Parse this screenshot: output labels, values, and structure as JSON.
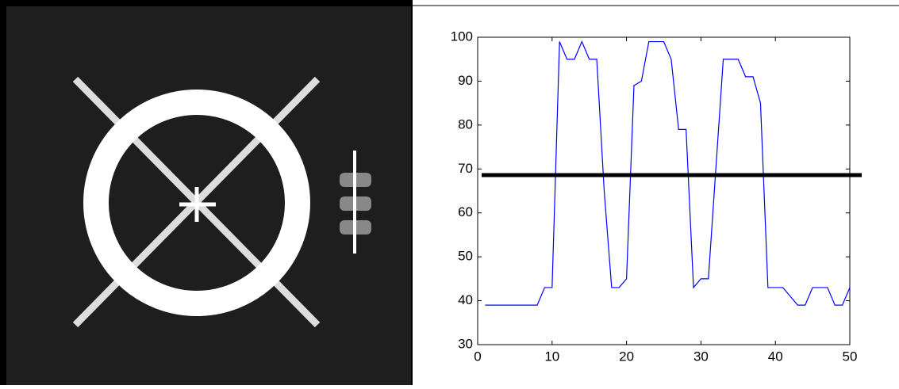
{
  "chart_data": {
    "type": "line",
    "x": [
      1,
      2,
      3,
      4,
      5,
      6,
      7,
      8,
      9,
      10,
      11,
      12,
      13,
      14,
      15,
      16,
      17,
      18,
      19,
      20,
      21,
      22,
      23,
      24,
      25,
      26,
      27,
      28,
      29,
      30,
      31,
      32,
      33,
      34,
      35,
      36,
      37,
      38,
      39,
      40,
      41,
      42,
      43,
      44,
      45,
      46,
      47,
      48,
      49,
      50
    ],
    "series": [
      {
        "color": "#0000ff",
        "values": [
          39,
          39,
          39,
          39,
          39,
          39,
          39,
          39,
          43,
          43,
          99,
          95,
          95,
          99,
          95,
          95,
          65,
          43,
          43,
          45,
          89,
          90,
          99,
          99,
          99,
          95,
          79,
          79,
          43,
          45,
          45,
          70,
          95,
          95,
          95,
          91,
          91,
          85,
          43,
          43,
          43,
          41,
          39,
          39,
          43,
          43,
          43,
          39,
          39,
          43
        ]
      }
    ],
    "threshold": 68.6,
    "threshold_color": "#000000",
    "xlim": [
      0,
      50
    ],
    "xticks": [
      0,
      10,
      20,
      30,
      40,
      50
    ],
    "ylim": [
      30,
      100
    ],
    "yticks": [
      30,
      40,
      50,
      60,
      70,
      80,
      90,
      100
    ]
  }
}
